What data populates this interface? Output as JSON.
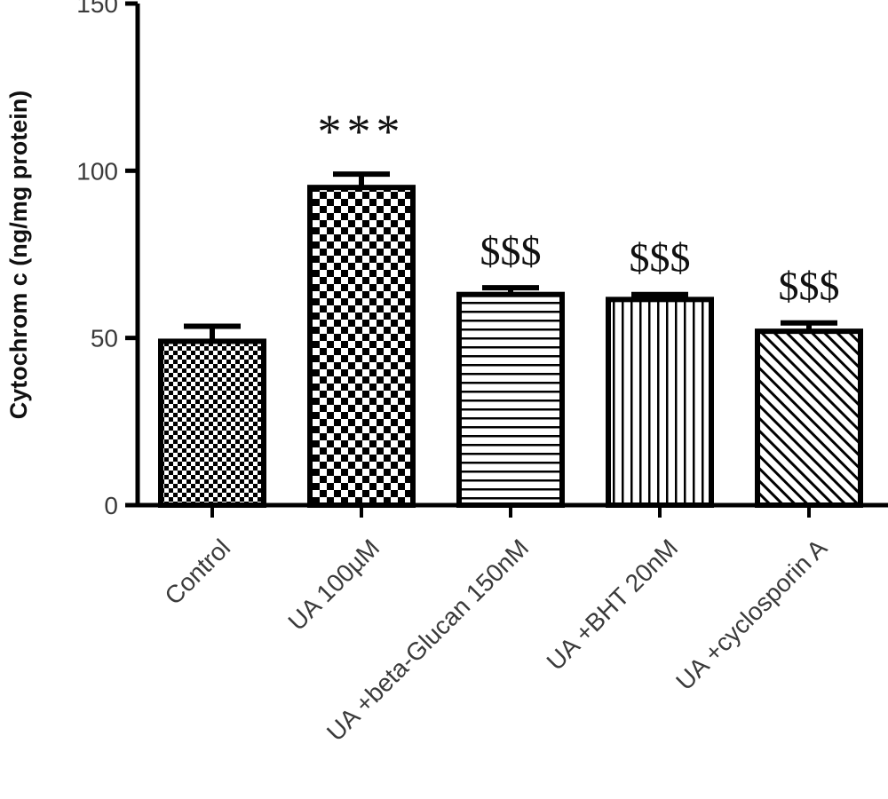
{
  "chart_data": {
    "type": "bar",
    "title": "",
    "xlabel": "",
    "ylabel": "Cytochrom c (ng/mg protein)",
    "ylim": [
      0,
      150
    ],
    "yticks": [
      0,
      50,
      100,
      150
    ],
    "grid": false,
    "categories": [
      "Control",
      "UA 100µM",
      "UA +beta-Glucan 150nM",
      "UA +BHT 20nM",
      "UA +cyclosporin A"
    ],
    "values": [
      49,
      95,
      63,
      61.5,
      52
    ],
    "errors": [
      4.5,
      4,
      2,
      1.5,
      2.5
    ],
    "annotations": [
      "",
      "***",
      "$$$",
      "$$$",
      "$$$"
    ],
    "patterns": [
      "fine-checker",
      "checker",
      "horizontal-lines",
      "vertical-lines",
      "diagonal-lines"
    ],
    "bar_edge_color": "#000000",
    "bar_fill_color": "#ffffff"
  }
}
